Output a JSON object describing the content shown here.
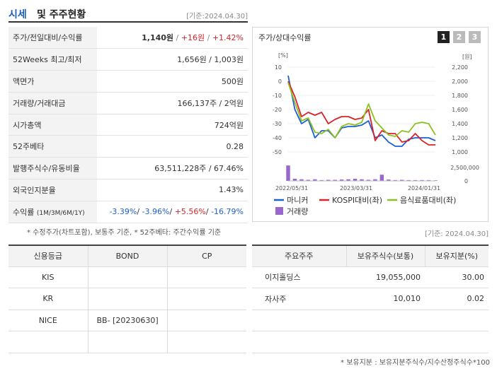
{
  "header": {
    "title_accent": "시세",
    "title_rest": "및 주주현황",
    "date": "[기준:2024.04.30]"
  },
  "stock_info": [
    {
      "label": "주가/전일대비/수익률",
      "price": "1,140원",
      "change": "+16원",
      "rate": "+1.42%"
    },
    {
      "label": "52Weeks 최고/최저",
      "value": "1,656원 / 1,003원"
    },
    {
      "label": "액면가",
      "value": "500원"
    },
    {
      "label": "거래량/거래대금",
      "value": "166,137주 / 2억원"
    },
    {
      "label": "시가총액",
      "value": "724억원"
    },
    {
      "label": "52주베타",
      "value": "0.28"
    },
    {
      "label": "발행주식수/유동비율",
      "value": "63,511,228주 / 67.46%"
    },
    {
      "label": "외국인지분율",
      "value": "1.43%"
    },
    {
      "label": "수익률",
      "label_sub": "(1M/3M/6M/1Y)",
      "r1": "-3.39%",
      "r2": "-3.96%",
      "r3": "+5.56%",
      "r4": "-16.79%"
    }
  ],
  "note_left": "* 수정주가(차트포함), 보통주 기준, * 52주베타: 주간수익률 기준",
  "chart_panel": {
    "title": "주가/상대수익률",
    "pages": [
      "1",
      "2",
      "3"
    ]
  },
  "chart_data": {
    "type": "line",
    "left_unit": "[%]",
    "right_unit": "[원]",
    "left_ticks": [
      "10",
      "0",
      "-10",
      "-20",
      "-30",
      "-40",
      "-50"
    ],
    "right_ticks": [
      "2,200",
      "2,000",
      "1,800",
      "1,600",
      "1,400",
      "1,200",
      "1,000"
    ],
    "volume_tick": "2,500,000",
    "volume_zero": "0",
    "x_labels": [
      "2022/05/31",
      "2023/03/31",
      "2024/01/31"
    ],
    "ylim": [
      -50,
      10
    ],
    "series": [
      {
        "name": "마니커",
        "color": "#1c5fd6",
        "values": [
          4,
          -20,
          -30,
          -27,
          -40,
          -35,
          -35,
          -40,
          -33,
          -32,
          -32,
          -31,
          -28,
          -40,
          -38,
          -43,
          -46,
          -46,
          -41,
          -40,
          -40,
          -40,
          -42
        ]
      },
      {
        "name": "KOSPI대비(좌)",
        "color": "#d8232a",
        "values": [
          0,
          -11,
          -25,
          -22,
          -24,
          -22,
          -30,
          -27,
          -25,
          -25,
          -27,
          -26,
          -20,
          -42,
          -35,
          -37,
          -37,
          -43,
          -42,
          -37,
          -42,
          -45,
          -45
        ]
      },
      {
        "name": "음식료품대비(좌)",
        "color": "#8dc021",
        "values": [
          -1,
          -15,
          -28,
          -26,
          -36,
          -37,
          -34,
          -40,
          -32,
          -30,
          -31,
          -29,
          -16,
          -28,
          -33,
          -38,
          -39,
          -35,
          -36,
          -30,
          -29,
          -30,
          -38
        ]
      }
    ],
    "volume": {
      "name": "거래량",
      "color": "#9966cc",
      "values": [
        2900000,
        400000,
        300000,
        200000,
        300000,
        150000,
        200000,
        200000,
        250000,
        300000,
        400000,
        300000,
        200000,
        300000,
        1150000,
        250000,
        150000,
        200000,
        150000,
        150000,
        150000,
        150000,
        100000
      ]
    }
  },
  "date_right": "[기준: 2024.04.30]",
  "credit": {
    "headers": [
      "신용등급",
      "BOND",
      "CP"
    ],
    "rows": [
      {
        "agency": "KIS",
        "bond": "",
        "cp": ""
      },
      {
        "agency": "KR",
        "bond": "",
        "cp": ""
      },
      {
        "agency": "NICE",
        "bond": "BB-  [20230630]",
        "cp": ""
      },
      {
        "agency": "",
        "bond": "",
        "cp": ""
      }
    ]
  },
  "holders": {
    "headers": [
      "주요주주",
      "보유주식수(보통)",
      "보유지분(%)"
    ],
    "rows": [
      {
        "name": "이지홀딩스",
        "shares": "19,055,000",
        "pct": "30.00"
      },
      {
        "name": "자사주",
        "shares": "10,010",
        "pct": "0.02"
      },
      {
        "name": "",
        "shares": "",
        "pct": ""
      },
      {
        "name": "",
        "shares": "",
        "pct": ""
      }
    ]
  },
  "note_right": "* 보유지분 : 보유지분주식수/지수산정주식수*100"
}
